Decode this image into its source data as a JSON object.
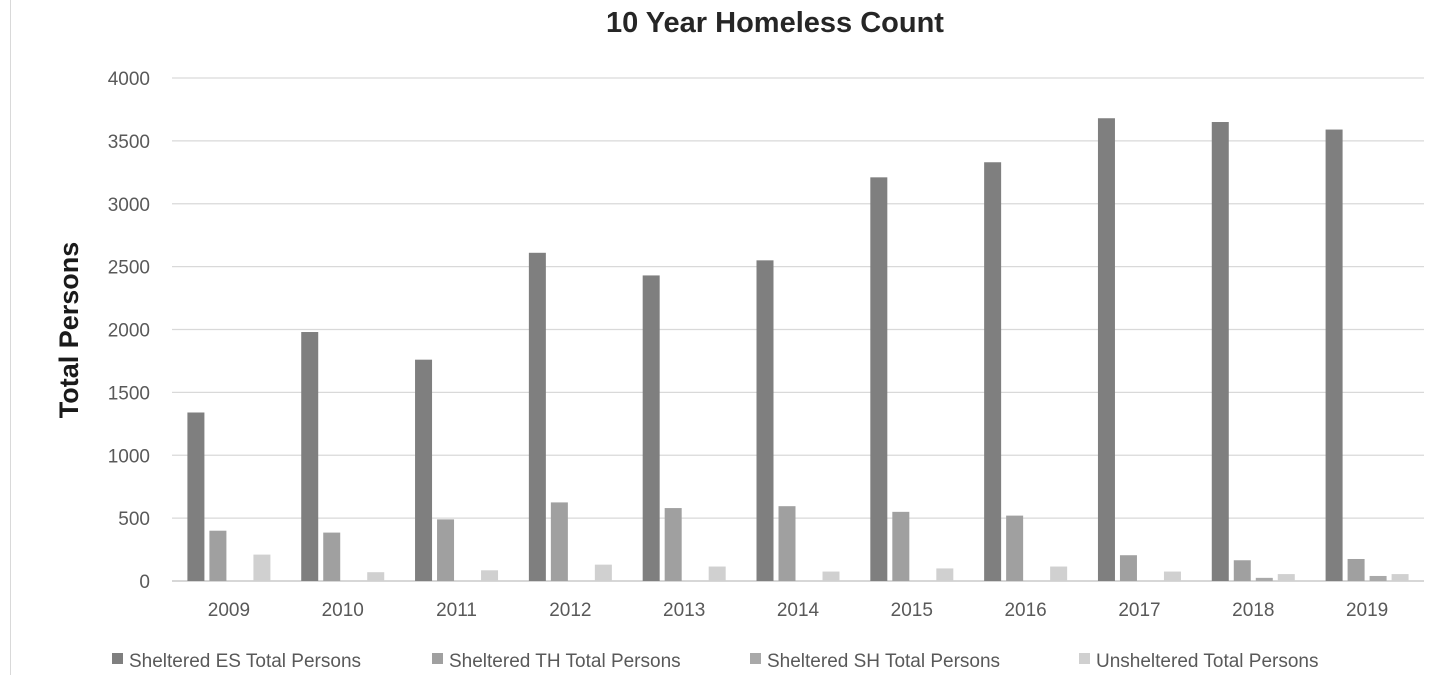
{
  "chart_data": {
    "type": "bar",
    "title": "10 Year Homeless Count",
    "xlabel": "",
    "ylabel": "Total Persons",
    "ylim": [
      0,
      4000
    ],
    "yticks": [
      0,
      500,
      1000,
      1500,
      2000,
      2500,
      3000,
      3500,
      4000
    ],
    "grid": true,
    "legend_position": "bottom",
    "categories": [
      "2009",
      "2010",
      "2011",
      "2012",
      "2013",
      "2014",
      "2015",
      "2016",
      "2017",
      "2018",
      "2019"
    ],
    "series": [
      {
        "name": "Sheltered ES Total Persons",
        "color": "#7f7f7f",
        "values": [
          1340,
          1980,
          1760,
          2610,
          2430,
          2550,
          3210,
          3330,
          3680,
          3650,
          3590
        ]
      },
      {
        "name": "Sheltered TH Total Persons",
        "color": "#a0a0a0",
        "values": [
          400,
          385,
          490,
          625,
          580,
          595,
          550,
          520,
          205,
          165,
          175
        ]
      },
      {
        "name": "Sheltered SH Total Persons",
        "color": "#a9a9a9",
        "values": [
          0,
          0,
          0,
          0,
          0,
          0,
          0,
          0,
          0,
          25,
          40
        ]
      },
      {
        "name": "Unsheltered Total Persons",
        "color": "#d0d0d0",
        "values": [
          210,
          70,
          85,
          130,
          115,
          75,
          100,
          115,
          75,
          55,
          55
        ]
      }
    ]
  }
}
